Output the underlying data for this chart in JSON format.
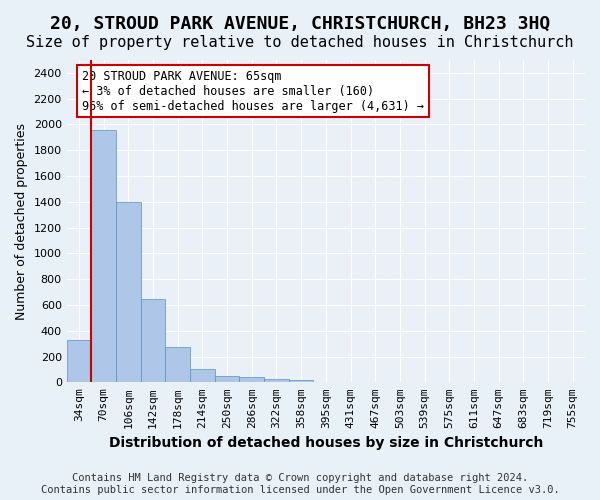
{
  "title": "20, STROUD PARK AVENUE, CHRISTCHURCH, BH23 3HQ",
  "subtitle": "Size of property relative to detached houses in Christchurch",
  "xlabel": "Distribution of detached houses by size in Christchurch",
  "ylabel": "Number of detached properties",
  "footer_lines": [
    "Contains HM Land Registry data © Crown copyright and database right 2024.",
    "Contains public sector information licensed under the Open Government Licence v3.0."
  ],
  "bin_labels": [
    "34sqm",
    "70sqm",
    "106sqm",
    "142sqm",
    "178sqm",
    "214sqm",
    "250sqm",
    "286sqm",
    "322sqm",
    "358sqm",
    "395sqm",
    "431sqm",
    "467sqm",
    "503sqm",
    "539sqm",
    "575sqm",
    "611sqm",
    "647sqm",
    "683sqm",
    "719sqm",
    "755sqm"
  ],
  "bar_values": [
    325,
    1960,
    1400,
    650,
    275,
    100,
    48,
    40,
    28,
    18,
    0,
    0,
    0,
    0,
    0,
    0,
    0,
    0,
    0,
    0,
    0
  ],
  "bar_color": "#aec6e8",
  "bar_edge_color": "#5a8fc2",
  "property_line_color": "#cc0000",
  "annotation_box_text": "20 STROUD PARK AVENUE: 65sqm\n← 3% of detached houses are smaller (160)\n96% of semi-detached houses are larger (4,631) →",
  "annotation_box_color": "#cc0000",
  "ylim": [
    0,
    2500
  ],
  "yticks": [
    0,
    200,
    400,
    600,
    800,
    1000,
    1200,
    1400,
    1600,
    1800,
    2000,
    2200,
    2400
  ],
  "bg_color": "#e8f0f8",
  "plot_bg_color": "#eaf0f8",
  "grid_color": "#ffffff",
  "title_fontsize": 13,
  "subtitle_fontsize": 11,
  "xlabel_fontsize": 10,
  "ylabel_fontsize": 9,
  "tick_fontsize": 8,
  "annotation_fontsize": 8.5,
  "footer_fontsize": 7.5
}
